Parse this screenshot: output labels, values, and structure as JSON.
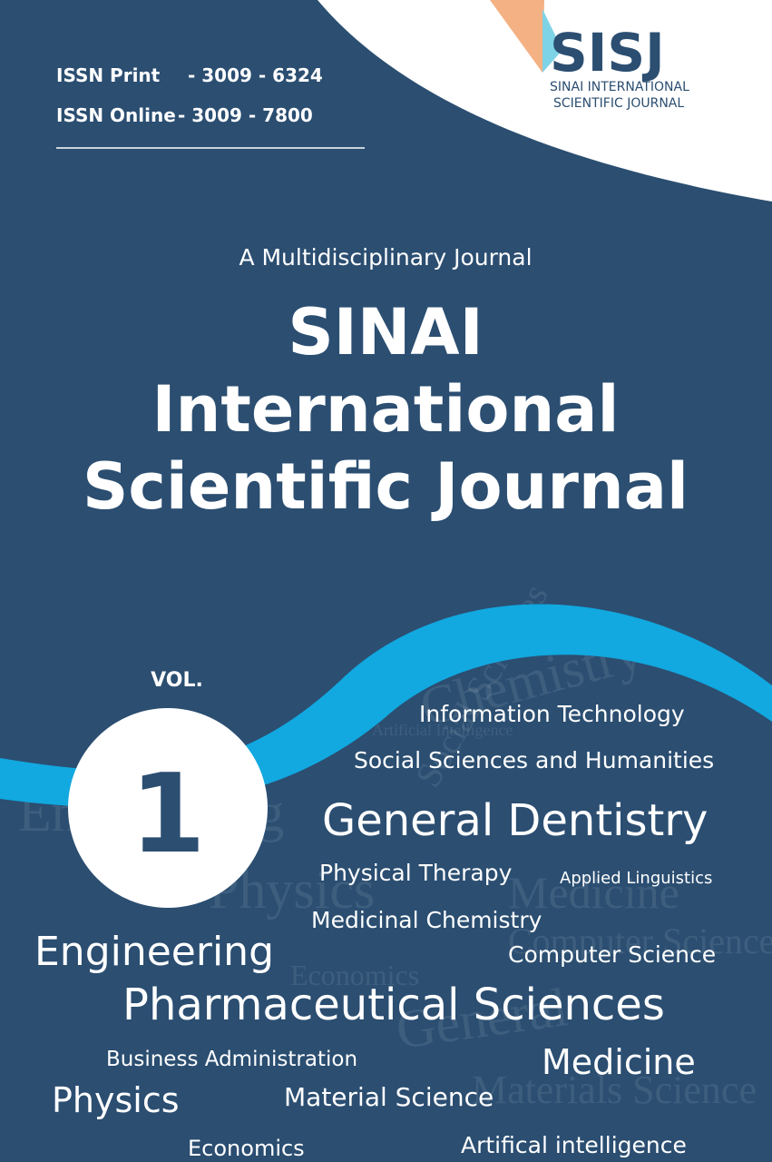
{
  "issn": {
    "print_label": "ISSN Print",
    "print_value": "- 3009 - 6324",
    "online_label": "ISSN Online",
    "online_value": "- 3009 - 7800"
  },
  "logo": {
    "acronym": "SISJ",
    "line1": "SINAI INTERNATIONAL",
    "line2": "SCIENTIFIC JOURNAL"
  },
  "subtitle": "A Multidisciplinary Journal",
  "title": [
    "SINAI",
    "International",
    "Scientific Journal"
  ],
  "volume": {
    "label": "VOL.",
    "number": "1"
  },
  "topics": [
    "Information Technology",
    "Social Sciences and Humanities",
    "General Dentistry",
    "Physical Therapy",
    "Applied Linguistics",
    "Medicinal Chemistry",
    "Engineering",
    "Computer Science",
    "Pharmaceutical Sciences",
    "Business Administration",
    "Medicine",
    "Physics",
    "Material Science",
    "Economics",
    "Artifical intelligence"
  ],
  "background_words": [
    "Chemistry",
    "Physics",
    "Medicine",
    "Engineering",
    "General",
    "Economics",
    "Computer Science",
    "Materials Science",
    "Social Sciences",
    "Artificial Intelligence"
  ]
}
